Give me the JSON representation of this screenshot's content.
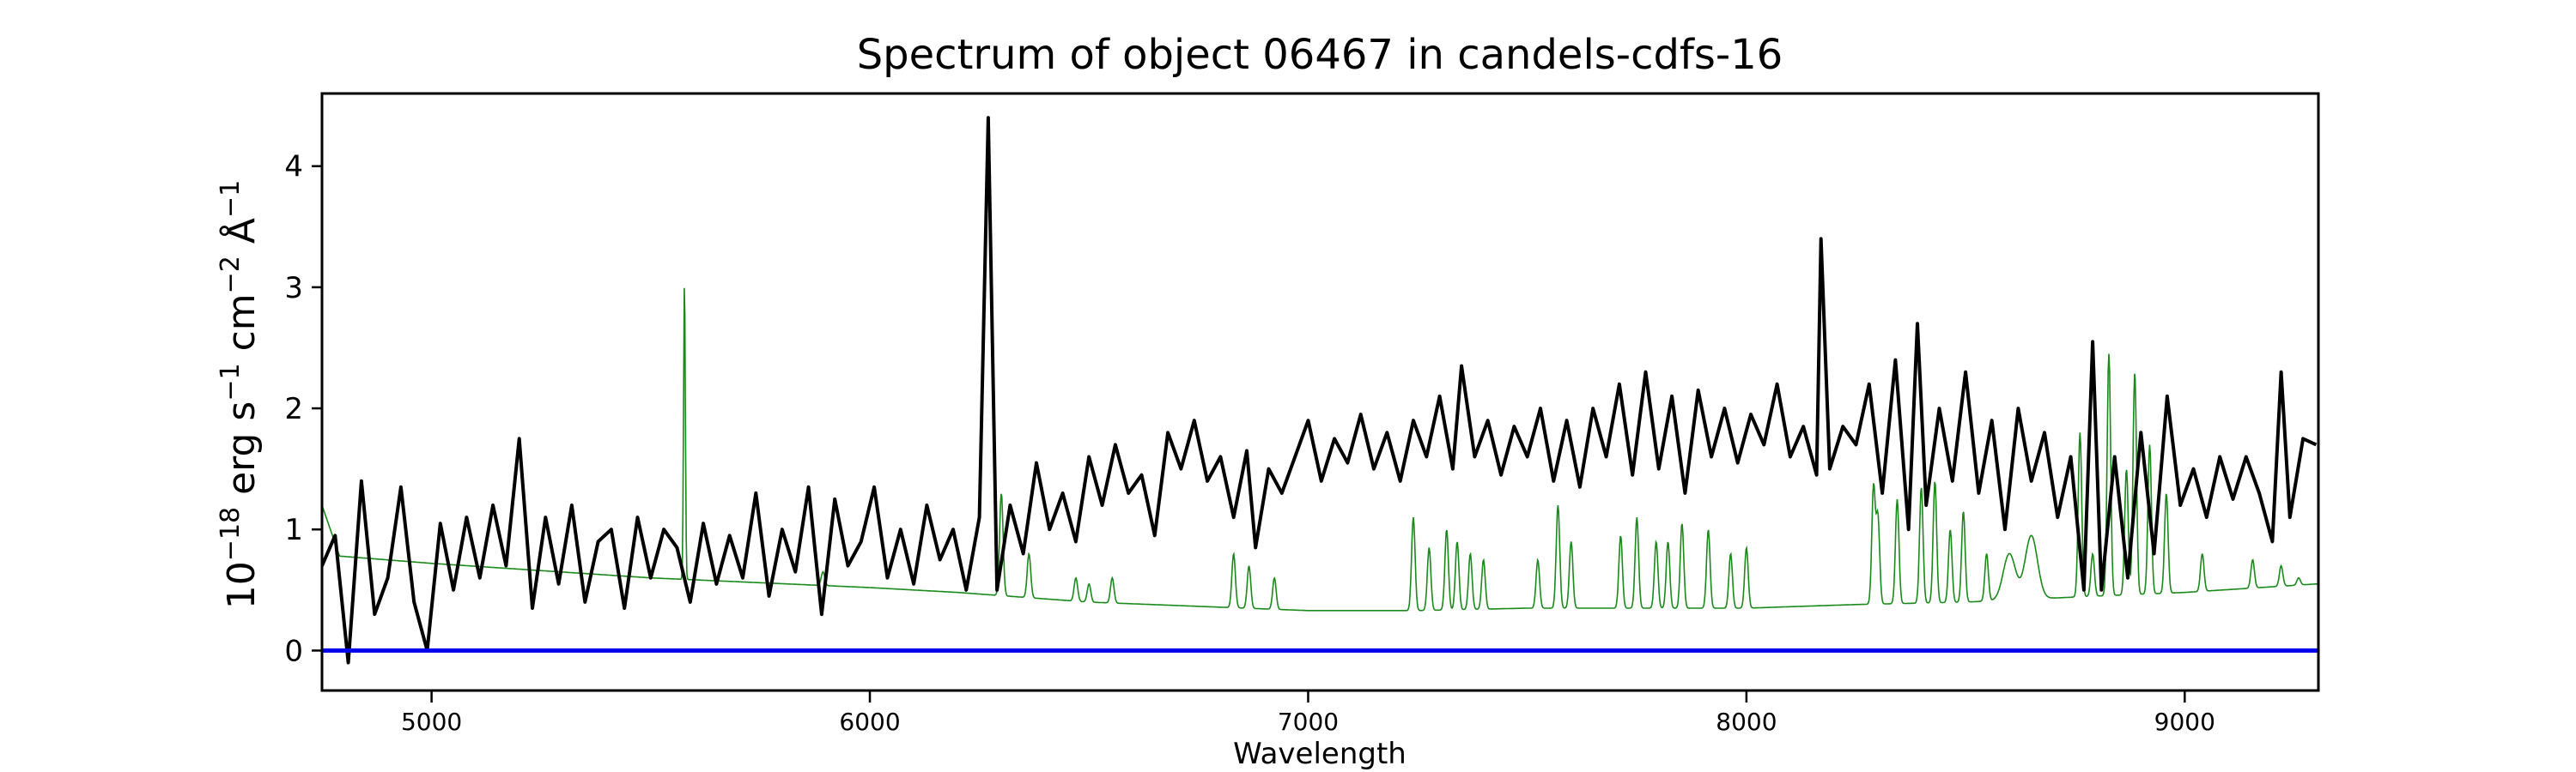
{
  "chart_data": {
    "type": "line",
    "title": "Spectrum of object 06467 in candels-cdfs-16",
    "xlabel": "Wavelength",
    "ylabel_parts": {
      "base": "10",
      "exp": "−18",
      "erg": " erg s",
      "s_exp": "−1",
      "cm": " cm",
      "cm_exp": "−2",
      "ang": " Å",
      "ang_exp": "−1"
    },
    "xlim": [
      4750,
      9305
    ],
    "ylim": [
      -0.33,
      4.6
    ],
    "xticks": [
      5000,
      6000,
      7000,
      8000,
      9000
    ],
    "xtick_labels": [
      "5000",
      "6000",
      "7000",
      "8000",
      "9000"
    ],
    "yticks": [
      0,
      1,
      2,
      3,
      4
    ],
    "ytick_labels": [
      "0",
      "1",
      "2",
      "3",
      "4"
    ],
    "grid": false,
    "colors": {
      "flux": "#000000",
      "sky": "#1a8a1a",
      "zero": "#0000ee"
    },
    "series": [
      {
        "name": "flux",
        "x": [
          4750,
          4780,
          4810,
          4840,
          4870,
          4900,
          4930,
          4960,
          4990,
          5020,
          5050,
          5080,
          5110,
          5140,
          5170,
          5200,
          5230,
          5260,
          5290,
          5320,
          5350,
          5380,
          5410,
          5440,
          5470,
          5500,
          5530,
          5560,
          5590,
          5620,
          5650,
          5680,
          5710,
          5740,
          5770,
          5800,
          5830,
          5860,
          5890,
          5920,
          5950,
          5980,
          6010,
          6040,
          6070,
          6100,
          6130,
          6160,
          6190,
          6220,
          6250,
          6270,
          6290,
          6320,
          6350,
          6380,
          6410,
          6440,
          6470,
          6500,
          6530,
          6560,
          6590,
          6620,
          6650,
          6680,
          6710,
          6740,
          6770,
          6800,
          6830,
          6860,
          6880,
          6910,
          6940,
          6970,
          7000,
          7030,
          7060,
          7090,
          7120,
          7150,
          7180,
          7210,
          7240,
          7270,
          7300,
          7330,
          7350,
          7380,
          7410,
          7440,
          7470,
          7500,
          7530,
          7560,
          7590,
          7620,
          7650,
          7680,
          7710,
          7740,
          7770,
          7800,
          7830,
          7860,
          7890,
          7920,
          7950,
          7980,
          8010,
          8040,
          8070,
          8100,
          8130,
          8160,
          8170,
          8190,
          8220,
          8250,
          8280,
          8310,
          8340,
          8370,
          8390,
          8410,
          8440,
          8470,
          8500,
          8530,
          8560,
          8590,
          8620,
          8650,
          8680,
          8710,
          8740,
          8770,
          8790,
          8810,
          8840,
          8870,
          8900,
          8930,
          8960,
          8990,
          9020,
          9050,
          9080,
          9110,
          9140,
          9170,
          9200,
          9220,
          9240,
          9270,
          9300
        ],
        "y": [
          0.7,
          0.95,
          -0.1,
          1.4,
          0.3,
          0.6,
          1.35,
          0.4,
          0.0,
          1.05,
          0.5,
          1.1,
          0.6,
          1.2,
          0.7,
          1.75,
          0.35,
          1.1,
          0.55,
          1.2,
          0.4,
          0.9,
          1.0,
          0.35,
          1.1,
          0.6,
          1.0,
          0.85,
          0.4,
          1.05,
          0.55,
          0.95,
          0.6,
          1.3,
          0.45,
          1.0,
          0.65,
          1.35,
          0.3,
          1.25,
          0.7,
          0.9,
          1.35,
          0.6,
          1.0,
          0.55,
          1.2,
          0.75,
          1.0,
          0.5,
          1.1,
          4.4,
          0.5,
          1.2,
          0.8,
          1.55,
          1.0,
          1.3,
          0.9,
          1.6,
          1.2,
          1.7,
          1.3,
          1.45,
          0.95,
          1.8,
          1.5,
          1.9,
          1.4,
          1.6,
          1.1,
          1.65,
          0.85,
          1.5,
          1.3,
          1.6,
          1.9,
          1.4,
          1.75,
          1.55,
          1.95,
          1.5,
          1.8,
          1.4,
          1.9,
          1.6,
          2.1,
          1.5,
          2.35,
          1.6,
          1.9,
          1.45,
          1.85,
          1.6,
          2.0,
          1.4,
          1.9,
          1.35,
          2.0,
          1.6,
          2.2,
          1.45,
          2.3,
          1.5,
          2.1,
          1.3,
          2.15,
          1.6,
          2.0,
          1.55,
          1.95,
          1.7,
          2.2,
          1.6,
          1.85,
          1.45,
          3.4,
          1.5,
          1.85,
          1.7,
          2.2,
          1.3,
          2.4,
          1.0,
          2.7,
          1.2,
          2.0,
          1.4,
          2.3,
          1.3,
          1.9,
          1.0,
          2.0,
          1.4,
          1.8,
          1.1,
          1.6,
          0.5,
          2.55,
          0.5,
          1.6,
          0.6,
          1.8,
          0.8,
          2.1,
          1.2,
          1.5,
          1.1,
          1.6,
          1.25,
          1.6,
          1.3,
          0.9,
          2.3,
          1.1,
          1.75,
          1.7
        ]
      },
      {
        "name": "sky",
        "continuum": [
          [
            4750,
            1.2
          ],
          [
            4790,
            0.78
          ],
          [
            5000,
            0.72
          ],
          [
            5500,
            0.6
          ],
          [
            6000,
            0.52
          ],
          [
            6200,
            0.48
          ],
          [
            6500,
            0.4
          ],
          [
            7000,
            0.33
          ],
          [
            7250,
            0.33
          ],
          [
            7500,
            0.35
          ],
          [
            8000,
            0.35
          ],
          [
            8250,
            0.38
          ],
          [
            8500,
            0.4
          ],
          [
            8800,
            0.45
          ],
          [
            9000,
            0.48
          ],
          [
            9300,
            0.55
          ]
        ],
        "lines": [
          [
            5577,
            3.07
          ],
          [
            5893,
            0.65
          ],
          [
            6300,
            1.3
          ],
          [
            6363,
            0.8
          ],
          [
            6470,
            0.6
          ],
          [
            6500,
            0.55
          ],
          [
            6553,
            0.6
          ],
          [
            6830,
            0.8
          ],
          [
            6865,
            0.7
          ],
          [
            6923,
            0.6
          ],
          [
            7240,
            1.1
          ],
          [
            7276,
            0.85
          ],
          [
            7316,
            1.0
          ],
          [
            7340,
            0.9
          ],
          [
            7370,
            0.8
          ],
          [
            7400,
            0.75
          ],
          [
            7524,
            0.75
          ],
          [
            7570,
            1.2
          ],
          [
            7600,
            0.9
          ],
          [
            7713,
            0.95
          ],
          [
            7750,
            1.1
          ],
          [
            7794,
            0.9
          ],
          [
            7821,
            0.9
          ],
          [
            7853,
            1.05
          ],
          [
            7913,
            1.0
          ],
          [
            7964,
            0.8
          ],
          [
            8000,
            0.85
          ],
          [
            8290,
            1.35
          ],
          [
            8300,
            1.1
          ],
          [
            8344,
            1.25
          ],
          [
            8399,
            1.35
          ],
          [
            8430,
            1.4
          ],
          [
            8465,
            1.0
          ],
          [
            8495,
            1.15
          ],
          [
            8548,
            0.8
          ],
          [
            8600,
            0.8
          ],
          [
            8650,
            0.95
          ],
          [
            8761,
            1.8
          ],
          [
            8790,
            0.8
          ],
          [
            8827,
            2.45
          ],
          [
            8867,
            1.5
          ],
          [
            8886,
            2.3
          ],
          [
            8920,
            1.7
          ],
          [
            8958,
            1.3
          ],
          [
            9040,
            0.8
          ],
          [
            9155,
            0.75
          ],
          [
            9220,
            0.7
          ],
          [
            9260,
            0.6
          ]
        ]
      },
      {
        "name": "zero",
        "y": 0
      }
    ]
  }
}
